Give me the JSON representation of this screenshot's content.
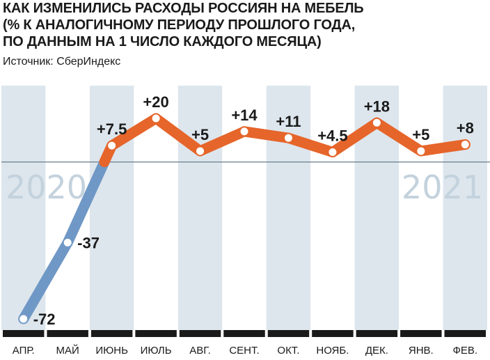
{
  "title_lines": [
    "КАК ИЗМЕНИЛИСЬ РАСХОДЫ РОССИЯН НА МЕБЕЛЬ",
    "(% К АНАЛОГИЧНОМУ ПЕРИОДУ ПРОШЛОГО ГОДА,",
    "ПО ДАННЫМ НА 1 ЧИСЛО КАЖДОГО МЕСЯЦА)"
  ],
  "source": "Источник: СберИндекс",
  "colors": {
    "negative_line": "#7098c6",
    "positive_line": "#e6652a",
    "shaded_band": "#dde6ed",
    "year_label": "#c3d2dd",
    "axis_bar": "#1a1a1a"
  },
  "chart_data": {
    "type": "line",
    "categories": [
      "АПР.",
      "МАЙ",
      "ИЮНЬ",
      "ИЮЛЬ",
      "АВГ.",
      "СЕНТ.",
      "ОКТ.",
      "НОЯБ.",
      "ДЕК.",
      "ЯНВ.",
      "ФЕВ."
    ],
    "values": [
      -72,
      -37,
      7.5,
      20,
      5,
      14,
      11,
      4.5,
      18,
      5,
      8
    ],
    "value_labels": [
      "-72",
      "-37",
      "+7.5",
      "+20",
      "+5",
      "+14",
      "+11",
      "+4.5",
      "+18",
      "+5",
      "+8"
    ],
    "years": [
      {
        "label": "2020",
        "first_index": 0,
        "last_index": 8
      },
      {
        "label": "2021",
        "first_index": 9,
        "last_index": 10
      }
    ],
    "zero_line": true,
    "negative_color": "#7098c6",
    "positive_color": "#e6652a"
  }
}
